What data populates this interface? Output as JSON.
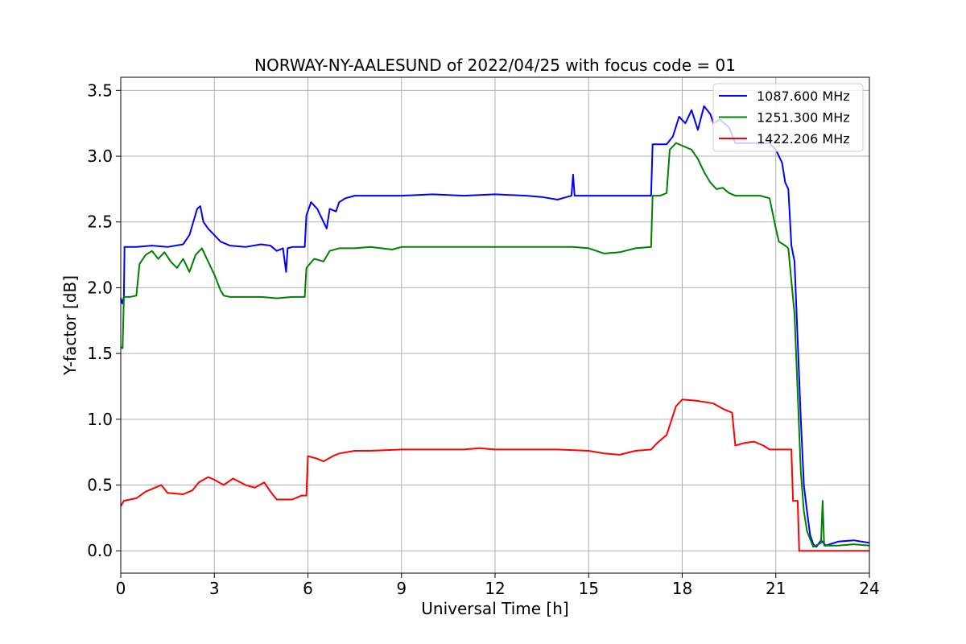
{
  "chart_data": {
    "type": "line",
    "title": "NORWAY-NY-AALESUND of 2022/04/25 with focus code = 01",
    "xlabel": "Universal Time [h]",
    "ylabel": "Y-factor [dB]",
    "xlim": [
      0,
      24
    ],
    "ylim": [
      -0.17,
      3.6
    ],
    "xticks": [
      0,
      3,
      6,
      9,
      12,
      15,
      18,
      21,
      24
    ],
    "yticks": [
      0.0,
      0.5,
      1.0,
      1.5,
      2.0,
      2.5,
      3.0,
      3.5
    ],
    "xtick_labels": [
      "0",
      "3",
      "6",
      "9",
      "12",
      "15",
      "18",
      "21",
      "24"
    ],
    "ytick_labels": [
      "0.0",
      "0.5",
      "1.0",
      "1.5",
      "2.0",
      "2.5",
      "3.0",
      "3.5"
    ],
    "grid": true,
    "legend_position": "upper-right",
    "series": [
      {
        "name": "1087.600 MHz",
        "color": "#0000ff",
        "points": [
          [
            0.0,
            1.92
          ],
          [
            0.05,
            1.88
          ],
          [
            0.1,
            1.93
          ],
          [
            0.12,
            2.31
          ],
          [
            0.5,
            2.31
          ],
          [
            1.0,
            2.32
          ],
          [
            1.5,
            2.31
          ],
          [
            2.0,
            2.33
          ],
          [
            2.2,
            2.4
          ],
          [
            2.35,
            2.52
          ],
          [
            2.45,
            2.6
          ],
          [
            2.55,
            2.62
          ],
          [
            2.65,
            2.5
          ],
          [
            2.8,
            2.45
          ],
          [
            3.0,
            2.4
          ],
          [
            3.2,
            2.35
          ],
          [
            3.5,
            2.32
          ],
          [
            4.0,
            2.31
          ],
          [
            4.5,
            2.33
          ],
          [
            4.8,
            2.32
          ],
          [
            5.0,
            2.28
          ],
          [
            5.2,
            2.3
          ],
          [
            5.3,
            2.12
          ],
          [
            5.35,
            2.3
          ],
          [
            5.5,
            2.31
          ],
          [
            5.9,
            2.31
          ],
          [
            5.95,
            2.55
          ],
          [
            6.1,
            2.65
          ],
          [
            6.3,
            2.6
          ],
          [
            6.5,
            2.5
          ],
          [
            6.6,
            2.45
          ],
          [
            6.7,
            2.6
          ],
          [
            6.9,
            2.58
          ],
          [
            7.0,
            2.65
          ],
          [
            7.2,
            2.68
          ],
          [
            7.5,
            2.7
          ],
          [
            8.0,
            2.7
          ],
          [
            9.0,
            2.7
          ],
          [
            10.0,
            2.71
          ],
          [
            11.0,
            2.7
          ],
          [
            12.0,
            2.71
          ],
          [
            13.0,
            2.7
          ],
          [
            13.5,
            2.69
          ],
          [
            14.0,
            2.67
          ],
          [
            14.3,
            2.69
          ],
          [
            14.45,
            2.7
          ],
          [
            14.5,
            2.86
          ],
          [
            14.55,
            2.7
          ],
          [
            15.0,
            2.7
          ],
          [
            16.0,
            2.7
          ],
          [
            17.0,
            2.7
          ],
          [
            17.05,
            3.09
          ],
          [
            17.5,
            3.09
          ],
          [
            17.7,
            3.15
          ],
          [
            17.9,
            3.3
          ],
          [
            18.1,
            3.25
          ],
          [
            18.3,
            3.35
          ],
          [
            18.5,
            3.2
          ],
          [
            18.7,
            3.38
          ],
          [
            18.9,
            3.32
          ],
          [
            19.0,
            3.25
          ],
          [
            19.2,
            3.28
          ],
          [
            19.5,
            3.22
          ],
          [
            19.7,
            3.1
          ],
          [
            20.0,
            3.1
          ],
          [
            20.5,
            3.1
          ],
          [
            20.8,
            3.1
          ],
          [
            21.0,
            3.05
          ],
          [
            21.2,
            2.95
          ],
          [
            21.3,
            2.8
          ],
          [
            21.4,
            2.75
          ],
          [
            21.5,
            2.32
          ],
          [
            21.6,
            2.2
          ],
          [
            21.7,
            1.6
          ],
          [
            21.8,
            1.0
          ],
          [
            21.9,
            0.5
          ],
          [
            22.0,
            0.3
          ],
          [
            22.1,
            0.12
          ],
          [
            22.2,
            0.05
          ],
          [
            22.3,
            0.03
          ],
          [
            22.45,
            0.08
          ],
          [
            22.6,
            0.04
          ],
          [
            23.0,
            0.07
          ],
          [
            23.5,
            0.08
          ],
          [
            24.0,
            0.06
          ]
        ]
      },
      {
        "name": "1251.300 MHz",
        "color": "#008000",
        "points": [
          [
            0.0,
            1.55
          ],
          [
            0.06,
            1.54
          ],
          [
            0.1,
            1.93
          ],
          [
            0.3,
            1.93
          ],
          [
            0.5,
            1.94
          ],
          [
            0.6,
            2.18
          ],
          [
            0.8,
            2.25
          ],
          [
            1.0,
            2.28
          ],
          [
            1.2,
            2.22
          ],
          [
            1.4,
            2.27
          ],
          [
            1.6,
            2.2
          ],
          [
            1.8,
            2.15
          ],
          [
            2.0,
            2.22
          ],
          [
            2.2,
            2.12
          ],
          [
            2.4,
            2.25
          ],
          [
            2.6,
            2.3
          ],
          [
            2.8,
            2.2
          ],
          [
            3.0,
            2.1
          ],
          [
            3.2,
            1.98
          ],
          [
            3.3,
            1.94
          ],
          [
            3.5,
            1.93
          ],
          [
            4.0,
            1.93
          ],
          [
            4.5,
            1.93
          ],
          [
            5.0,
            1.92
          ],
          [
            5.5,
            1.93
          ],
          [
            5.9,
            1.93
          ],
          [
            5.95,
            2.15
          ],
          [
            6.2,
            2.22
          ],
          [
            6.5,
            2.2
          ],
          [
            6.7,
            2.28
          ],
          [
            7.0,
            2.3
          ],
          [
            7.5,
            2.3
          ],
          [
            8.0,
            2.31
          ],
          [
            8.7,
            2.29
          ],
          [
            9.0,
            2.31
          ],
          [
            10.0,
            2.31
          ],
          [
            11.0,
            2.31
          ],
          [
            12.0,
            2.31
          ],
          [
            13.0,
            2.31
          ],
          [
            14.0,
            2.31
          ],
          [
            14.5,
            2.31
          ],
          [
            15.0,
            2.3
          ],
          [
            15.5,
            2.26
          ],
          [
            16.0,
            2.27
          ],
          [
            16.5,
            2.3
          ],
          [
            17.0,
            2.31
          ],
          [
            17.05,
            2.7
          ],
          [
            17.3,
            2.7
          ],
          [
            17.5,
            2.72
          ],
          [
            17.6,
            3.05
          ],
          [
            17.8,
            3.1
          ],
          [
            18.0,
            3.08
          ],
          [
            18.3,
            3.05
          ],
          [
            18.5,
            2.98
          ],
          [
            18.7,
            2.88
          ],
          [
            18.9,
            2.8
          ],
          [
            19.1,
            2.75
          ],
          [
            19.3,
            2.76
          ],
          [
            19.5,
            2.72
          ],
          [
            19.7,
            2.7
          ],
          [
            20.0,
            2.7
          ],
          [
            20.5,
            2.7
          ],
          [
            20.8,
            2.68
          ],
          [
            21.0,
            2.45
          ],
          [
            21.1,
            2.35
          ],
          [
            21.3,
            2.32
          ],
          [
            21.4,
            2.3
          ],
          [
            21.5,
            2.05
          ],
          [
            21.6,
            1.8
          ],
          [
            21.7,
            1.2
          ],
          [
            21.8,
            0.6
          ],
          [
            21.9,
            0.3
          ],
          [
            22.0,
            0.15
          ],
          [
            22.2,
            0.03
          ],
          [
            22.45,
            0.06
          ],
          [
            22.5,
            0.38
          ],
          [
            22.55,
            0.04
          ],
          [
            23.0,
            0.04
          ],
          [
            23.5,
            0.05
          ],
          [
            24.0,
            0.04
          ]
        ]
      },
      {
        "name": "1422.206 MHz",
        "color": "#ff0000",
        "points": [
          [
            0.0,
            0.34
          ],
          [
            0.1,
            0.38
          ],
          [
            0.5,
            0.4
          ],
          [
            0.8,
            0.45
          ],
          [
            1.0,
            0.47
          ],
          [
            1.3,
            0.5
          ],
          [
            1.5,
            0.44
          ],
          [
            2.0,
            0.43
          ],
          [
            2.3,
            0.46
          ],
          [
            2.5,
            0.52
          ],
          [
            2.8,
            0.56
          ],
          [
            3.0,
            0.54
          ],
          [
            3.3,
            0.5
          ],
          [
            3.6,
            0.55
          ],
          [
            4.0,
            0.5
          ],
          [
            4.3,
            0.48
          ],
          [
            4.6,
            0.52
          ],
          [
            4.8,
            0.45
          ],
          [
            5.0,
            0.39
          ],
          [
            5.5,
            0.39
          ],
          [
            5.8,
            0.42
          ],
          [
            5.95,
            0.42
          ],
          [
            6.0,
            0.72
          ],
          [
            6.3,
            0.7
          ],
          [
            6.5,
            0.68
          ],
          [
            6.8,
            0.72
          ],
          [
            7.0,
            0.74
          ],
          [
            7.5,
            0.76
          ],
          [
            8.0,
            0.76
          ],
          [
            9.0,
            0.77
          ],
          [
            10.0,
            0.77
          ],
          [
            11.0,
            0.77
          ],
          [
            11.5,
            0.78
          ],
          [
            12.0,
            0.77
          ],
          [
            13.0,
            0.77
          ],
          [
            14.0,
            0.77
          ],
          [
            15.0,
            0.76
          ],
          [
            15.5,
            0.74
          ],
          [
            16.0,
            0.73
          ],
          [
            16.5,
            0.76
          ],
          [
            17.0,
            0.77
          ],
          [
            17.2,
            0.82
          ],
          [
            17.5,
            0.88
          ],
          [
            17.8,
            1.1
          ],
          [
            18.0,
            1.15
          ],
          [
            18.5,
            1.14
          ],
          [
            19.0,
            1.12
          ],
          [
            19.3,
            1.08
          ],
          [
            19.6,
            1.05
          ],
          [
            19.7,
            0.8
          ],
          [
            20.0,
            0.82
          ],
          [
            20.3,
            0.83
          ],
          [
            20.6,
            0.8
          ],
          [
            20.8,
            0.77
          ],
          [
            21.0,
            0.77
          ],
          [
            21.5,
            0.77
          ],
          [
            21.55,
            0.38
          ],
          [
            21.7,
            0.38
          ],
          [
            21.75,
            0.0
          ],
          [
            22.0,
            0.0
          ],
          [
            23.0,
            0.0
          ],
          [
            24.0,
            0.0
          ]
        ]
      }
    ]
  }
}
